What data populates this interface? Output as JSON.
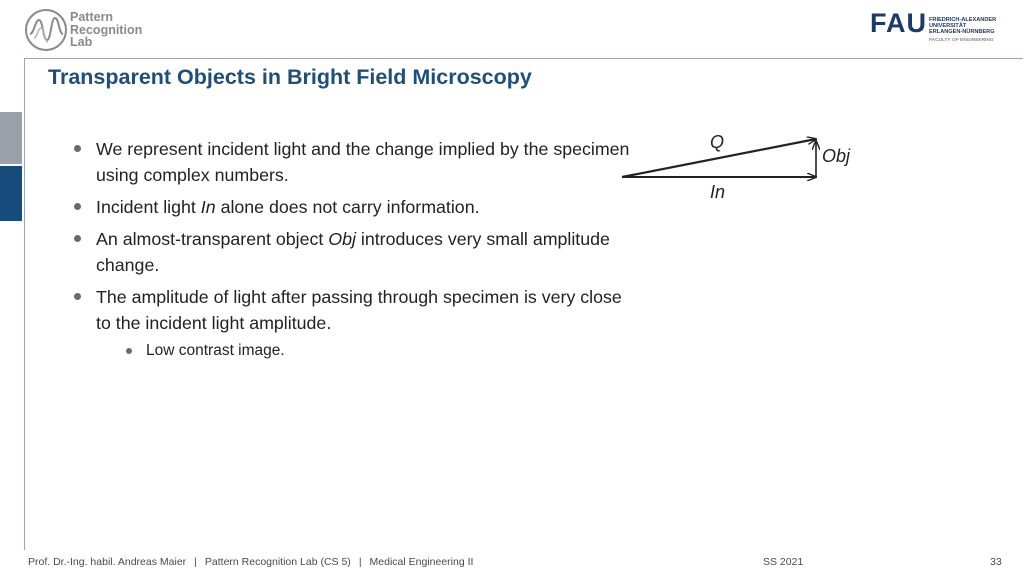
{
  "header": {
    "lab_logo_lines": [
      "Pattern",
      "Recognition",
      "Lab"
    ],
    "fau_logo": {
      "mark": "FAU",
      "university_lines": [
        "FRIEDRICH-ALEXANDER",
        "UNIVERSITÄT",
        "ERLANGEN-NÜRNBERG"
      ],
      "faculty": "FACULTY OF ENGINEERING"
    }
  },
  "slide": {
    "title": "Transparent Objects in Bright Field Microscopy",
    "bullets": [
      {
        "parts": [
          "We represent incident light and the change implied by the specimen using complex numbers."
        ]
      },
      {
        "parts": [
          "Incident light ",
          "In",
          " alone does not carry information."
        ]
      },
      {
        "parts": [
          "An almost-transparent object ",
          "Obj",
          " introduces very small amplitude change."
        ]
      },
      {
        "parts": [
          "The amplitude of light after passing through specimen is very close to the incident light amplitude."
        ]
      }
    ],
    "sub_bullets": [
      "Low contrast image."
    ]
  },
  "diagram": {
    "labels": {
      "q": "Q",
      "obj": "Obj",
      "in": "In"
    }
  },
  "footer": {
    "author": "Prof. Dr.-Ing. habil. Andreas Maier",
    "lab": "Pattern Recognition Lab (CS 5)",
    "course": "Medical Engineering II",
    "separator": "|",
    "semester": "SS 2021",
    "page": "33"
  },
  "colors": {
    "title": "#1f4e79",
    "side_tab_active": "#164b7c",
    "side_tab_inactive": "#9ba1a8",
    "fau_blue": "#1b3a6b"
  }
}
